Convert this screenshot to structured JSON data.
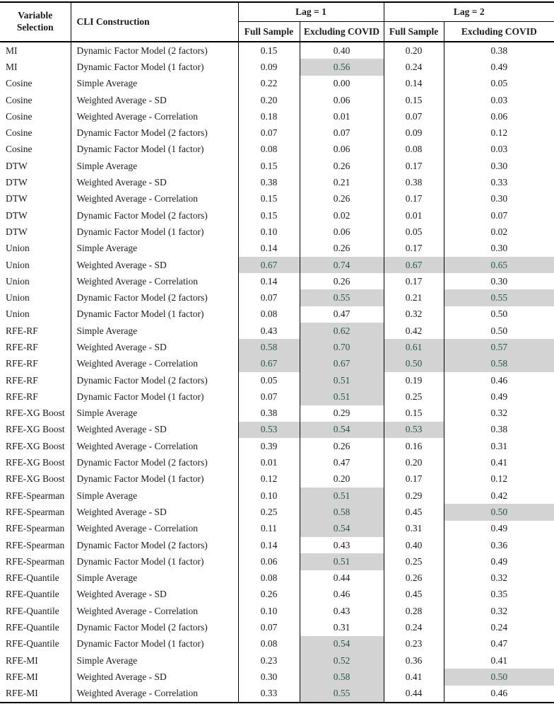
{
  "table": {
    "headers": {
      "col_variable_selection": "Variable Selection",
      "col_cli_construction": "CLI Construction",
      "group_lag1": "Lag = 1",
      "group_lag2": "Lag = 2",
      "sub_full_sample": "Full Sample",
      "sub_excluding_covid": "Excluding COVID"
    },
    "rows": [
      {
        "variable_selection": "MI",
        "cli_construction": "Dynamic Factor Model (2 factors)",
        "values": [
          "0.15",
          "0.40",
          "0.20",
          "0.38"
        ],
        "highlighted": [
          false,
          false,
          false,
          false
        ]
      },
      {
        "variable_selection": "MI",
        "cli_construction": "Dynamic Factor Model (1 factor)",
        "values": [
          "0.09",
          "0.56",
          "0.24",
          "0.49"
        ],
        "highlighted": [
          false,
          true,
          false,
          false
        ]
      },
      {
        "variable_selection": "Cosine",
        "cli_construction": "Simple Average",
        "values": [
          "0.22",
          "0.00",
          "0.14",
          "0.05"
        ],
        "highlighted": [
          false,
          false,
          false,
          false
        ]
      },
      {
        "variable_selection": "Cosine",
        "cli_construction": "Weighted Average - SD",
        "values": [
          "0.20",
          "0.06",
          "0.15",
          "0.03"
        ],
        "highlighted": [
          false,
          false,
          false,
          false
        ]
      },
      {
        "variable_selection": "Cosine",
        "cli_construction": "Weighted Average - Correlation",
        "values": [
          "0.18",
          "0.01",
          "0.07",
          "0.06"
        ],
        "highlighted": [
          false,
          false,
          false,
          false
        ]
      },
      {
        "variable_selection": "Cosine",
        "cli_construction": "Dynamic Factor Model (2 factors)",
        "values": [
          "0.07",
          "0.07",
          "0.09",
          "0.12"
        ],
        "highlighted": [
          false,
          false,
          false,
          false
        ]
      },
      {
        "variable_selection": "Cosine",
        "cli_construction": "Dynamic Factor Model (1 factor)",
        "values": [
          "0.08",
          "0.06",
          "0.08",
          "0.03"
        ],
        "highlighted": [
          false,
          false,
          false,
          false
        ]
      },
      {
        "variable_selection": "DTW",
        "cli_construction": "Simple Average",
        "values": [
          "0.15",
          "0.26",
          "0.17",
          "0.30"
        ],
        "highlighted": [
          false,
          false,
          false,
          false
        ]
      },
      {
        "variable_selection": "DTW",
        "cli_construction": "Weighted Average - SD",
        "values": [
          "0.38",
          "0.21",
          "0.38",
          "0.33"
        ],
        "highlighted": [
          false,
          false,
          false,
          false
        ]
      },
      {
        "variable_selection": "DTW",
        "cli_construction": "Weighted Average - Correlation",
        "values": [
          "0.15",
          "0.26",
          "0.17",
          "0.30"
        ],
        "highlighted": [
          false,
          false,
          false,
          false
        ]
      },
      {
        "variable_selection": "DTW",
        "cli_construction": "Dynamic Factor Model (2 factors)",
        "values": [
          "0.15",
          "0.02",
          "0.01",
          "0.07"
        ],
        "highlighted": [
          false,
          false,
          false,
          false
        ]
      },
      {
        "variable_selection": "DTW",
        "cli_construction": "Dynamic Factor Model (1 factor)",
        "values": [
          "0.10",
          "0.06",
          "0.05",
          "0.02"
        ],
        "highlighted": [
          false,
          false,
          false,
          false
        ]
      },
      {
        "variable_selection": "Union",
        "cli_construction": "Simple Average",
        "values": [
          "0.14",
          "0.26",
          "0.17",
          "0.30"
        ],
        "highlighted": [
          false,
          false,
          false,
          false
        ]
      },
      {
        "variable_selection": "Union",
        "cli_construction": "Weighted Average - SD",
        "values": [
          "0.67",
          "0.74",
          "0.67",
          "0.65"
        ],
        "highlighted": [
          true,
          true,
          true,
          true
        ]
      },
      {
        "variable_selection": "Union",
        "cli_construction": "Weighted Average - Correlation",
        "values": [
          "0.14",
          "0.26",
          "0.17",
          "0.30"
        ],
        "highlighted": [
          false,
          false,
          false,
          false
        ]
      },
      {
        "variable_selection": "Union",
        "cli_construction": "Dynamic Factor Model (2 factors)",
        "values": [
          "0.07",
          "0.55",
          "0.21",
          "0.55"
        ],
        "highlighted": [
          false,
          true,
          false,
          true
        ]
      },
      {
        "variable_selection": "Union",
        "cli_construction": "Dynamic Factor Model (1 factor)",
        "values": [
          "0.08",
          "0.47",
          "0.32",
          "0.50"
        ],
        "highlighted": [
          false,
          false,
          false,
          false
        ]
      },
      {
        "variable_selection": "RFE-RF",
        "cli_construction": "Simple Average",
        "values": [
          "0.43",
          "0.62",
          "0.42",
          "0.50"
        ],
        "highlighted": [
          false,
          true,
          false,
          false
        ]
      },
      {
        "variable_selection": "RFE-RF",
        "cli_construction": "Weighted Average - SD",
        "values": [
          "0.58",
          "0.70",
          "0.61",
          "0.57"
        ],
        "highlighted": [
          true,
          true,
          true,
          true
        ]
      },
      {
        "variable_selection": "RFE-RF",
        "cli_construction": "Weighted Average - Correlation",
        "values": [
          "0.67",
          "0.67",
          "0.50",
          "0.58"
        ],
        "highlighted": [
          true,
          true,
          true,
          true
        ]
      },
      {
        "variable_selection": "RFE-RF",
        "cli_construction": "Dynamic Factor Model (2 factors)",
        "values": [
          "0.05",
          "0.51",
          "0.19",
          "0.46"
        ],
        "highlighted": [
          false,
          true,
          false,
          false
        ]
      },
      {
        "variable_selection": "RFE-RF",
        "cli_construction": "Dynamic Factor Model (1 factor)",
        "values": [
          "0.07",
          "0.51",
          "0.25",
          "0.49"
        ],
        "highlighted": [
          false,
          true,
          false,
          false
        ]
      },
      {
        "variable_selection": "RFE-XG Boost",
        "cli_construction": "Simple Average",
        "values": [
          "0.38",
          "0.29",
          "0.15",
          "0.32"
        ],
        "highlighted": [
          false,
          false,
          false,
          false
        ]
      },
      {
        "variable_selection": "RFE-XG Boost",
        "cli_construction": "Weighted Average - SD",
        "values": [
          "0.53",
          "0.54",
          "0.53",
          "0.38"
        ],
        "highlighted": [
          true,
          true,
          true,
          false
        ]
      },
      {
        "variable_selection": "RFE-XG Boost",
        "cli_construction": "Weighted Average - Correlation",
        "values": [
          "0.39",
          "0.26",
          "0.16",
          "0.31"
        ],
        "highlighted": [
          false,
          false,
          false,
          false
        ]
      },
      {
        "variable_selection": "RFE-XG Boost",
        "cli_construction": "Dynamic Factor Model (2 factors)",
        "values": [
          "0.01",
          "0.47",
          "0.20",
          "0.41"
        ],
        "highlighted": [
          false,
          false,
          false,
          false
        ]
      },
      {
        "variable_selection": "RFE-XG Boost",
        "cli_construction": "Dynamic Factor Model (1 factor)",
        "values": [
          "0.12",
          "0.20",
          "0.17",
          "0.12"
        ],
        "highlighted": [
          false,
          false,
          false,
          false
        ]
      },
      {
        "variable_selection": "RFE-Spearman",
        "cli_construction": "Simple Average",
        "values": [
          "0.10",
          "0.51",
          "0.29",
          "0.42"
        ],
        "highlighted": [
          false,
          true,
          false,
          false
        ]
      },
      {
        "variable_selection": "RFE-Spearman",
        "cli_construction": "Weighted Average - SD",
        "values": [
          "0.25",
          "0.58",
          "0.45",
          "0.50"
        ],
        "highlighted": [
          false,
          true,
          false,
          true
        ]
      },
      {
        "variable_selection": "RFE-Spearman",
        "cli_construction": "Weighted Average - Correlation",
        "values": [
          "0.11",
          "0.54",
          "0.31",
          "0.49"
        ],
        "highlighted": [
          false,
          true,
          false,
          false
        ]
      },
      {
        "variable_selection": "RFE-Spearman",
        "cli_construction": "Dynamic Factor Model (2 factors)",
        "values": [
          "0.14",
          "0.43",
          "0.40",
          "0.36"
        ],
        "highlighted": [
          false,
          false,
          false,
          false
        ]
      },
      {
        "variable_selection": "RFE-Spearman",
        "cli_construction": "Dynamic Factor Model (1 factor)",
        "values": [
          "0.06",
          "0.51",
          "0.25",
          "0.49"
        ],
        "highlighted": [
          false,
          true,
          false,
          false
        ]
      },
      {
        "variable_selection": "RFE-Quantile",
        "cli_construction": "Simple Average",
        "values": [
          "0.08",
          "0.44",
          "0.26",
          "0.32"
        ],
        "highlighted": [
          false,
          false,
          false,
          false
        ]
      },
      {
        "variable_selection": "RFE-Quantile",
        "cli_construction": "Weighted Average - SD",
        "values": [
          "0.26",
          "0.46",
          "0.45",
          "0.35"
        ],
        "highlighted": [
          false,
          false,
          false,
          false
        ]
      },
      {
        "variable_selection": "RFE-Quantile",
        "cli_construction": "Weighted Average - Correlation",
        "values": [
          "0.10",
          "0.43",
          "0.28",
          "0.32"
        ],
        "highlighted": [
          false,
          false,
          false,
          false
        ]
      },
      {
        "variable_selection": "RFE-Quantile",
        "cli_construction": "Dynamic Factor Model (2 factors)",
        "values": [
          "0.07",
          "0.31",
          "0.24",
          "0.24"
        ],
        "highlighted": [
          false,
          false,
          false,
          false
        ]
      },
      {
        "variable_selection": "RFE-Quantile",
        "cli_construction": "Dynamic Factor Model (1 factor)",
        "values": [
          "0.08",
          "0.54",
          "0.23",
          "0.47"
        ],
        "highlighted": [
          false,
          true,
          false,
          false
        ]
      },
      {
        "variable_selection": "RFE-MI",
        "cli_construction": "Simple Average",
        "values": [
          "0.23",
          "0.52",
          "0.36",
          "0.41"
        ],
        "highlighted": [
          false,
          true,
          false,
          false
        ]
      },
      {
        "variable_selection": "RFE-MI",
        "cli_construction": "Weighted Average - SD",
        "values": [
          "0.30",
          "0.58",
          "0.41",
          "0.50"
        ],
        "highlighted": [
          false,
          true,
          false,
          true
        ]
      },
      {
        "variable_selection": "RFE-MI",
        "cli_construction": "Weighted Average - Correlation",
        "values": [
          "0.33",
          "0.55",
          "0.44",
          "0.46"
        ],
        "highlighted": [
          false,
          true,
          false,
          false
        ]
      }
    ]
  },
  "colors": {
    "highlight_bg": "#d3d3d3",
    "highlight_text": "#26574c",
    "text": "#1a1a1a",
    "border": "#000000"
  }
}
